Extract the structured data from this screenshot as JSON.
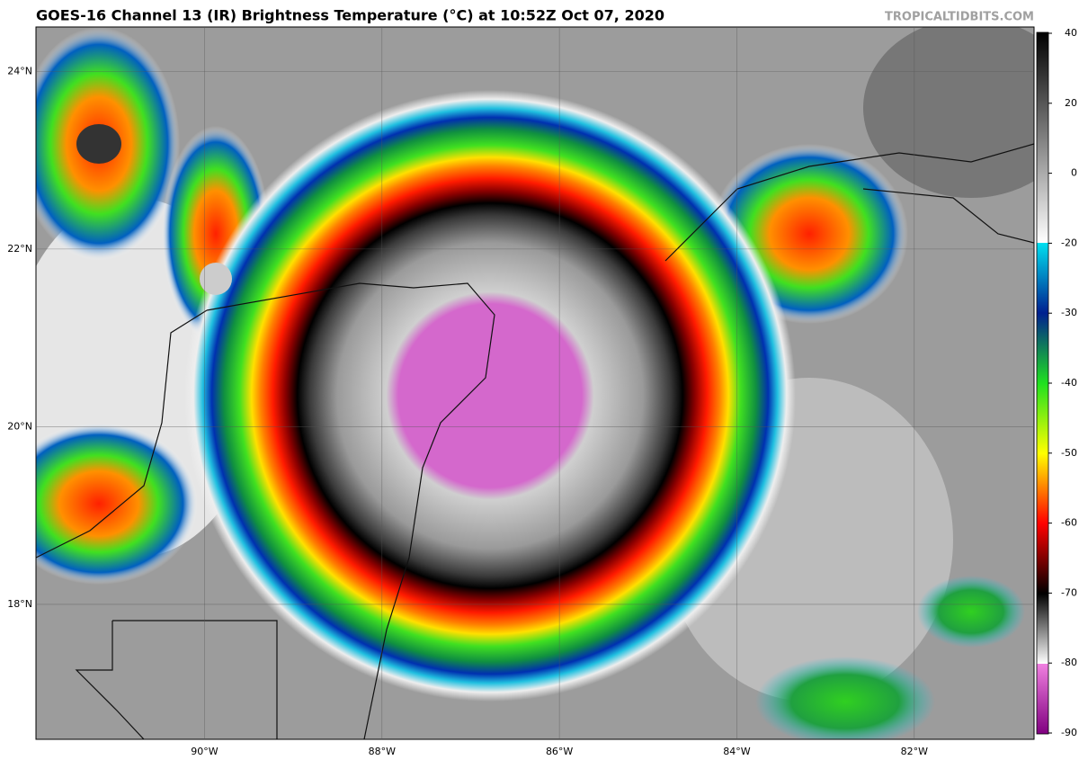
{
  "title": "GOES-16 Channel 13 (IR) Brightness Temperature (°C) at 10:52Z Oct 07, 2020",
  "credit": "TROPICALTIDBITS.COM",
  "map": {
    "lon_range": [
      -91.9,
      -80.65
    ],
    "lat_range": [
      16.48,
      24.5
    ],
    "lon_ticks": [
      {
        "value": -90,
        "label": "90°W"
      },
      {
        "value": -88,
        "label": "88°W"
      },
      {
        "value": -86,
        "label": "86°W"
      },
      {
        "value": -84,
        "label": "84°W"
      },
      {
        "value": -82,
        "label": "82°W"
      }
    ],
    "lat_ticks": [
      {
        "value": 24,
        "label": "24°N"
      },
      {
        "value": 22,
        "label": "22°N"
      },
      {
        "value": 20,
        "label": "20°N"
      },
      {
        "value": 18,
        "label": "18°N"
      }
    ]
  },
  "colorbar": {
    "ticks": [
      40,
      20,
      0,
      -20,
      -30,
      -40,
      -50,
      -60,
      -70,
      -80,
      -90
    ]
  }
}
